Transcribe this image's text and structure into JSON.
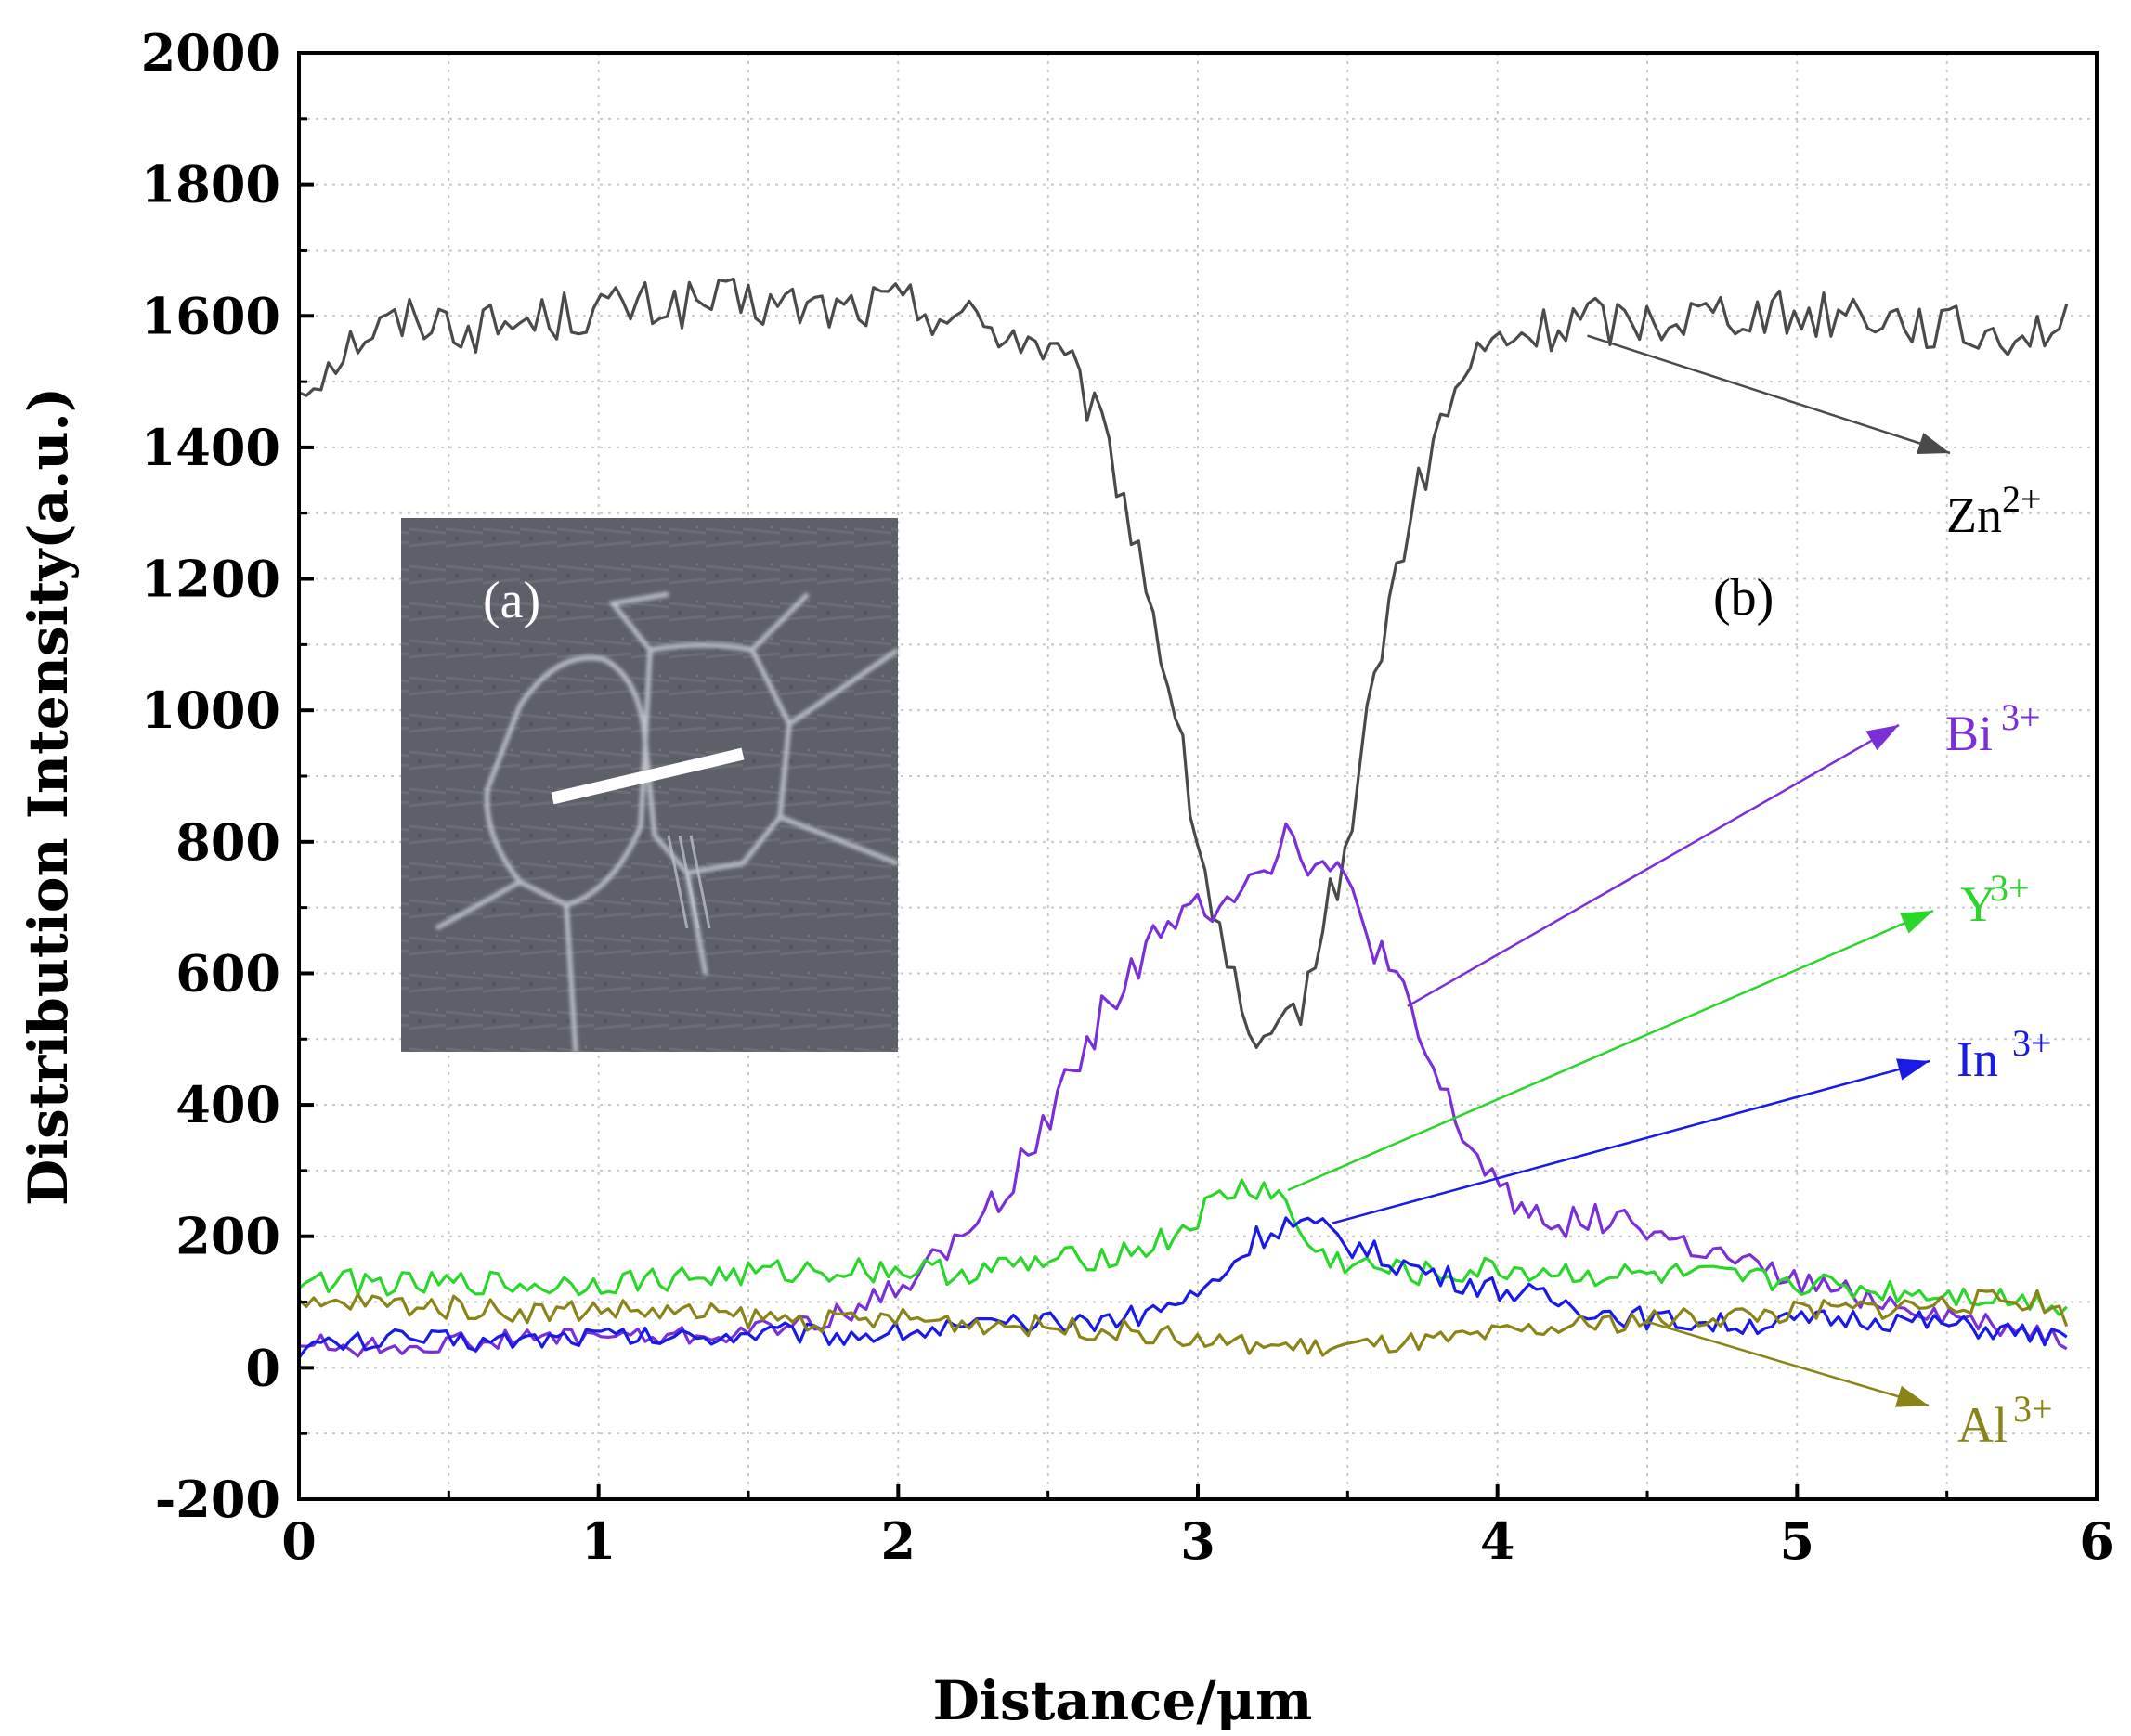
{
  "chart_data": {
    "type": "line",
    "title": "",
    "xlabel": "Distance/μm",
    "ylabel": "Distribution Intensity(a.u.)",
    "xlim": [
      0,
      6
    ],
    "ylim": [
      -200,
      2000
    ],
    "xticks": [
      "0",
      "1",
      "2",
      "3",
      "4",
      "5",
      "6"
    ],
    "yticks": [
      "-200",
      "0",
      "200",
      "400",
      "600",
      "800",
      "1000",
      "1200",
      "1400",
      "1600",
      "1800",
      "2000"
    ],
    "grid": true,
    "panel_labels": {
      "inset": "(a)",
      "main": "(b)"
    },
    "series": [
      {
        "name": "Zn2+",
        "label_base": "Zn",
        "label_sup": "2+",
        "color": "#4a4a4a",
        "x": [
          0.0,
          0.2,
          0.4,
          0.6,
          0.8,
          1.0,
          1.2,
          1.4,
          1.6,
          1.8,
          2.0,
          2.2,
          2.4,
          2.5,
          2.6,
          2.7,
          2.8,
          2.9,
          3.0,
          3.05,
          3.1,
          3.15,
          3.2,
          3.25,
          3.3,
          3.35,
          3.4,
          3.5,
          3.6,
          3.7,
          3.8,
          3.9,
          4.0,
          4.1,
          4.2,
          4.3,
          4.4,
          4.6,
          4.8,
          5.0,
          5.2,
          5.4,
          5.6,
          5.8,
          5.9
        ],
        "values": [
          1490,
          1570,
          1600,
          1580,
          1595,
          1610,
          1615,
          1620,
          1615,
          1610,
          1620,
          1600,
          1570,
          1550,
          1500,
          1400,
          1250,
          1050,
          800,
          700,
          620,
          520,
          470,
          480,
          530,
          560,
          640,
          800,
          1080,
          1280,
          1420,
          1520,
          1560,
          1570,
          1580,
          1600,
          1590,
          1600,
          1610,
          1600,
          1610,
          1590,
          1570,
          1580,
          1590
        ],
        "label_anchor": {
          "x": 4.3,
          "y": 1570
        }
      },
      {
        "name": "Bi3+",
        "label_base": "Bi",
        "label_sup": "3+",
        "color": "#7b2fd6",
        "x": [
          0.0,
          0.2,
          0.4,
          0.6,
          0.8,
          1.0,
          1.2,
          1.4,
          1.6,
          1.8,
          2.0,
          2.1,
          2.2,
          2.3,
          2.4,
          2.5,
          2.6,
          2.7,
          2.8,
          2.9,
          3.0,
          3.1,
          3.2,
          3.3,
          3.4,
          3.5,
          3.6,
          3.7,
          3.8,
          3.9,
          4.0,
          4.1,
          4.2,
          4.4,
          4.6,
          4.8,
          5.0,
          5.2,
          5.4,
          5.6,
          5.8,
          5.9
        ],
        "values": [
          40,
          30,
          35,
          40,
          45,
          50,
          45,
          50,
          60,
          80,
          120,
          160,
          190,
          240,
          300,
          380,
          470,
          560,
          620,
          660,
          700,
          730,
          760,
          810,
          770,
          720,
          640,
          540,
          430,
          340,
          280,
          240,
          220,
          230,
          190,
          160,
          130,
          110,
          90,
          70,
          55,
          40
        ],
        "label_anchor": {
          "x": 3.7,
          "y": 550
        }
      },
      {
        "name": "Y3+",
        "label_base": "Y",
        "label_sup": "3+",
        "color": "#2bd62b",
        "x": [
          0.0,
          0.2,
          0.4,
          0.6,
          0.8,
          1.0,
          1.2,
          1.4,
          1.6,
          1.8,
          2.0,
          2.2,
          2.4,
          2.6,
          2.8,
          2.9,
          3.0,
          3.1,
          3.2,
          3.25,
          3.3,
          3.35,
          3.4,
          3.6,
          3.8,
          4.0,
          4.2,
          4.4,
          4.6,
          4.8,
          5.0,
          5.2,
          5.4,
          5.6,
          5.8,
          5.9
        ],
        "values": [
          135,
          130,
          125,
          130,
          125,
          130,
          135,
          140,
          145,
          150,
          150,
          145,
          155,
          165,
          180,
          195,
          230,
          265,
          275,
          270,
          240,
          200,
          170,
          150,
          140,
          150,
          145,
          140,
          140,
          135,
          130,
          120,
          115,
          110,
          100,
          95
        ],
        "label_anchor": {
          "x": 3.3,
          "y": 270
        }
      },
      {
        "name": "In3+",
        "label_base": "In",
        "label_sup": "3+",
        "color": "#1a1ae6",
        "x": [
          0.0,
          0.2,
          0.4,
          0.6,
          0.8,
          1.0,
          1.2,
          1.4,
          1.6,
          1.8,
          2.0,
          2.2,
          2.4,
          2.6,
          2.8,
          3.0,
          3.1,
          3.2,
          3.3,
          3.4,
          3.5,
          3.6,
          3.8,
          4.0,
          4.2,
          4.4,
          4.6,
          4.8,
          5.0,
          5.2,
          5.4,
          5.6,
          5.8,
          5.9
        ],
        "values": [
          30,
          40,
          45,
          40,
          45,
          50,
          45,
          50,
          55,
          50,
          55,
          60,
          65,
          70,
          80,
          110,
          150,
          200,
          220,
          210,
          190,
          170,
          140,
          120,
          100,
          80,
          70,
          65,
          70,
          75,
          70,
          60,
          50,
          40
        ],
        "label_anchor": {
          "x": 3.45,
          "y": 220
        }
      },
      {
        "name": "Al3+",
        "label_base": "Al",
        "label_sup": "3+",
        "color": "#8a8418",
        "x": [
          0.0,
          0.2,
          0.4,
          0.6,
          0.8,
          1.0,
          1.2,
          1.4,
          1.6,
          1.8,
          2.0,
          2.2,
          2.4,
          2.6,
          2.8,
          3.0,
          3.2,
          3.4,
          3.6,
          3.8,
          4.0,
          4.2,
          4.4,
          4.6,
          4.8,
          5.0,
          5.2,
          5.4,
          5.6,
          5.8,
          5.9
        ],
        "values": [
          90,
          100,
          95,
          90,
          85,
          90,
          85,
          80,
          75,
          70,
          75,
          70,
          65,
          60,
          55,
          40,
          35,
          30,
          35,
          40,
          50,
          60,
          70,
          75,
          80,
          85,
          90,
          95,
          100,
          105,
          80
        ],
        "label_anchor": {
          "x": 4.5,
          "y": 70
        }
      }
    ]
  }
}
